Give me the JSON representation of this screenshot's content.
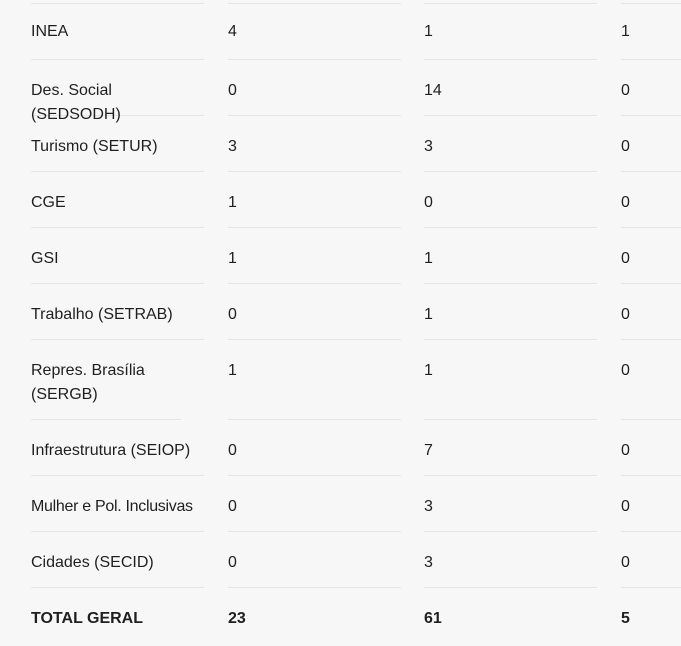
{
  "table": {
    "rows": [
      {
        "name": "INEA",
        "c1": "4",
        "c2": "1",
        "c3": "1"
      },
      {
        "name": "Des. Social (SEDSODH)",
        "c1": "0",
        "c2": "14",
        "c3": "0"
      },
      {
        "name": "Turismo (SETUR)",
        "c1": "3",
        "c2": "3",
        "c3": "0"
      },
      {
        "name": "CGE",
        "c1": "1",
        "c2": "0",
        "c3": "0"
      },
      {
        "name": "GSI",
        "c1": "1",
        "c2": "1",
        "c3": "0"
      },
      {
        "name": "Trabalho (SETRAB)",
        "c1": "0",
        "c2": "1",
        "c3": "0"
      },
      {
        "name": "Repres. Brasília (SERGB)",
        "c1": "1",
        "c2": "1",
        "c3": "0"
      },
      {
        "name": "Infraestrutura (SEIOP)",
        "c1": "0",
        "c2": "7",
        "c3": "0"
      },
      {
        "name": "Mulher e Pol. Inclusivas",
        "c1": "0",
        "c2": "3",
        "c3": "0"
      },
      {
        "name": "Cidades (SECID)",
        "c1": "0",
        "c2": "3",
        "c3": "0"
      }
    ],
    "total": {
      "name": "TOTAL GERAL",
      "c1": "23",
      "c2": "61",
      "c3": "5"
    }
  }
}
